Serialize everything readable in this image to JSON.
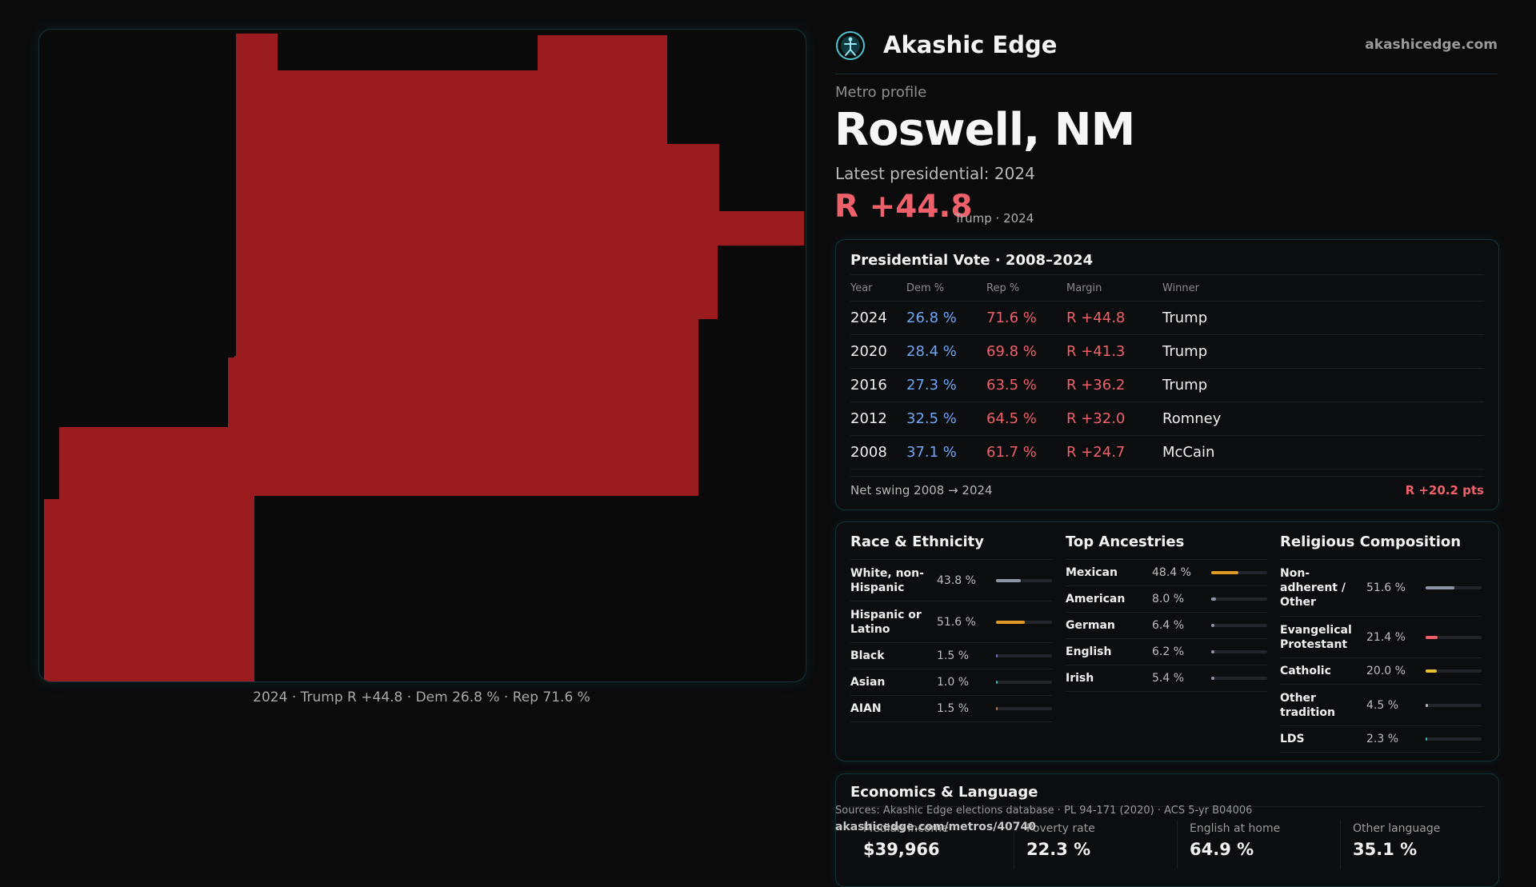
{
  "map": {
    "fill_color": "#9b1c1f",
    "caption": "2024 · Trump R +44.8 · Dem 26.8 % · Rep 71.6 %"
  },
  "brand": {
    "name": "Akashic Edge",
    "url": "akashicedge.com",
    "logo_icon": "compass-figure-icon"
  },
  "metro": {
    "label": "Metro profile",
    "title": "Roswell, NM",
    "latest_label": "Latest presidential: 2024",
    "margin": "R +44.8",
    "margin_sub": "Trump · 2024"
  },
  "vote": {
    "title": "Presidential Vote · 2008–2024",
    "headers": [
      "Year",
      "Dem %",
      "Rep %",
      "Margin",
      "Winner"
    ],
    "rows": [
      {
        "year": "2024",
        "dem": "26.8 %",
        "rep": "71.6 %",
        "margin": "R +44.8",
        "winner": "Trump"
      },
      {
        "year": "2020",
        "dem": "28.4 %",
        "rep": "69.8 %",
        "margin": "R +41.3",
        "winner": "Trump"
      },
      {
        "year": "2016",
        "dem": "27.3 %",
        "rep": "63.5 %",
        "margin": "R +36.2",
        "winner": "Trump"
      },
      {
        "year": "2012",
        "dem": "32.5 %",
        "rep": "64.5 %",
        "margin": "R +32.0",
        "winner": "Romney"
      },
      {
        "year": "2008",
        "dem": "37.1 %",
        "rep": "61.7 %",
        "margin": "R +24.7",
        "winner": "McCain"
      }
    ],
    "swing_label": "Net swing 2008 → 2024",
    "swing_value": "R +20.2 pts"
  },
  "race": {
    "title": "Race & Ethnicity",
    "rows": [
      {
        "name": "White, non-Hispanic",
        "value": "43.8 %",
        "level": 0.438,
        "color": "#8c96a6"
      },
      {
        "name": "Hispanic or Latino",
        "value": "51.6 %",
        "level": 0.516,
        "color": "#e09a25"
      },
      {
        "name": "Black",
        "value": "1.5 %",
        "level": 0.015,
        "color": "#7a6ad0"
      },
      {
        "name": "Asian",
        "value": "1.0 %",
        "level": 0.01,
        "color": "#35b8a8"
      },
      {
        "name": "AIAN",
        "value": "1.5 %",
        "level": 0.015,
        "color": "#b07a50"
      }
    ]
  },
  "ancestry": {
    "title": "Top Ancestries",
    "rows": [
      {
        "name": "Mexican",
        "value": "48.4 %",
        "level": 0.484,
        "color": "#e09a25"
      },
      {
        "name": "American",
        "value": "8.0 %",
        "level": 0.08,
        "color": "#8c96a6"
      },
      {
        "name": "German",
        "value": "6.4 %",
        "level": 0.064,
        "color": "#8c96a6"
      },
      {
        "name": "English",
        "value": "6.2 %",
        "level": 0.062,
        "color": "#8c96a6"
      },
      {
        "name": "Irish",
        "value": "5.4 %",
        "level": 0.054,
        "color": "#8c96a6"
      }
    ]
  },
  "religion": {
    "title": "Religious Composition",
    "rows": [
      {
        "name": "Non-adherent / Other",
        "value": "51.6 %",
        "level": 0.516,
        "color": "#8c96a6"
      },
      {
        "name": "Evangelical Protestant",
        "value": "21.4 %",
        "level": 0.214,
        "color": "#f0606a"
      },
      {
        "name": "Catholic",
        "value": "20.0 %",
        "level": 0.2,
        "color": "#e8c030"
      },
      {
        "name": "Other tradition",
        "value": "4.5 %",
        "level": 0.045,
        "color": "#b0b0b0"
      },
      {
        "name": "LDS",
        "value": "2.3 %",
        "level": 0.023,
        "color": "#35b8a8"
      }
    ]
  },
  "econ": {
    "title": "Economics & Language",
    "items": [
      {
        "label": "Median income",
        "value": "$39,966"
      },
      {
        "label": "Poverty rate",
        "value": "22.3 %"
      },
      {
        "label": "English at home",
        "value": "64.9 %"
      },
      {
        "label": "Other language",
        "value": "35.1 %"
      }
    ]
  },
  "footer": {
    "sources": "Sources: Akashic Edge elections database · PL 94-171 (2020) · ACS 5-yr B04006",
    "url": "akashicedge.com/metros/40740"
  }
}
